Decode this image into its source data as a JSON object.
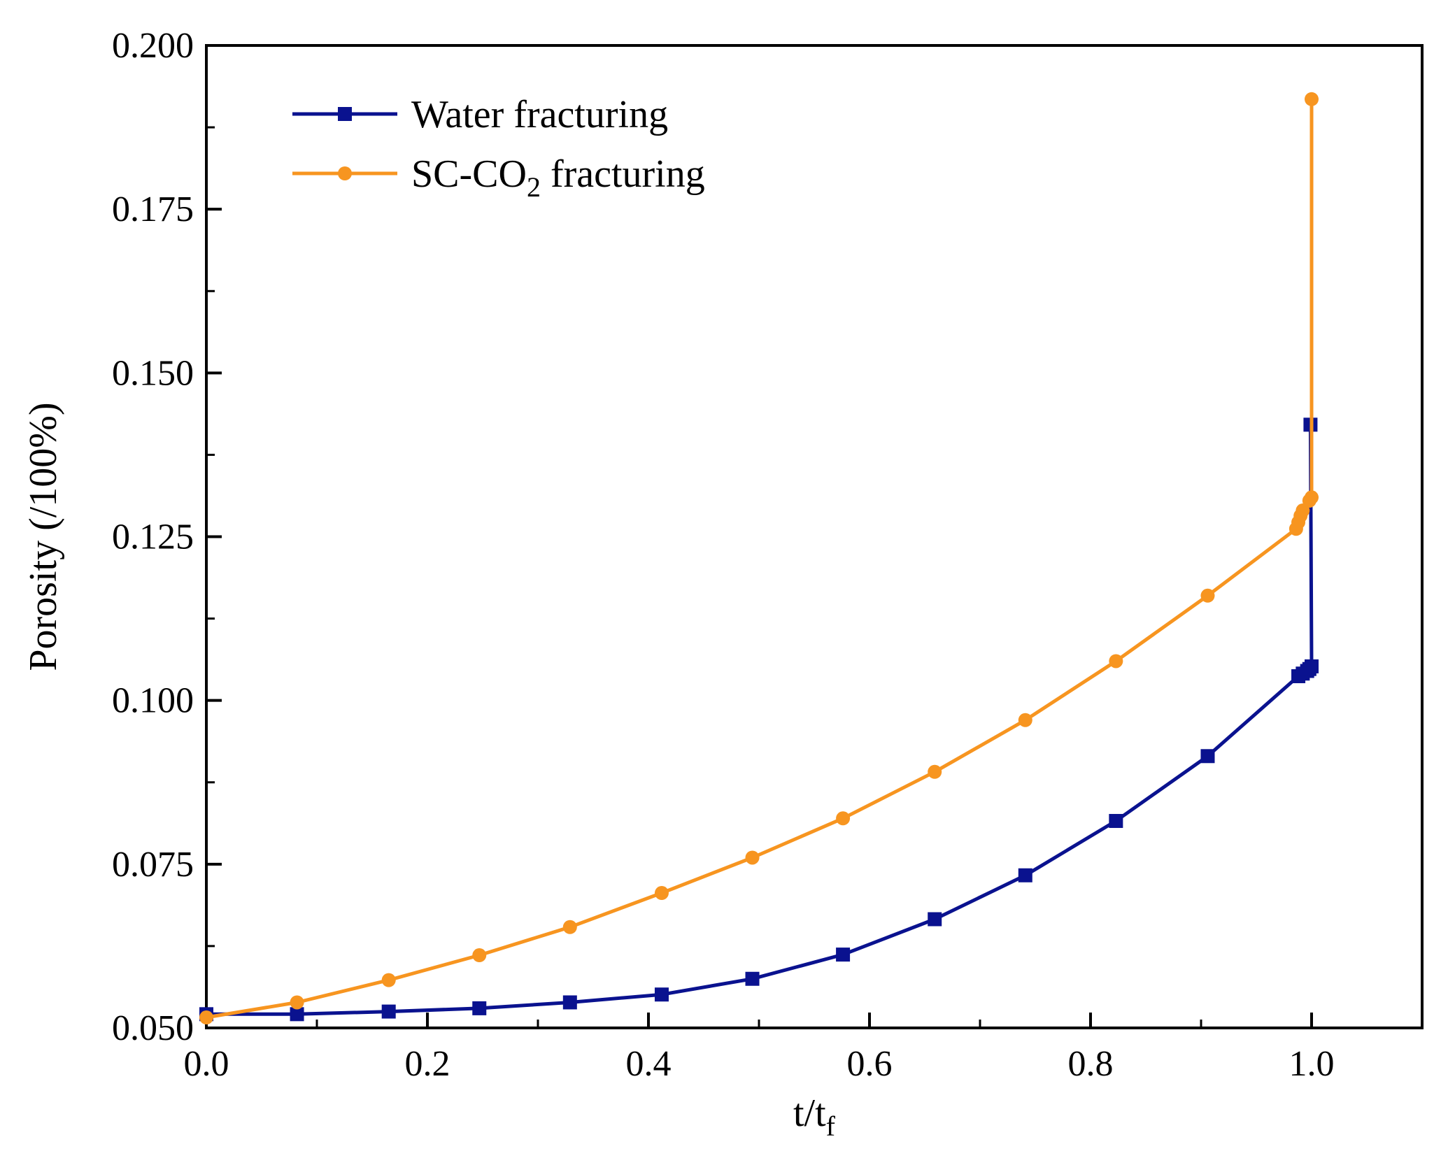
{
  "chart_data": {
    "type": "line",
    "title": "",
    "xlabel": "t/t",
    "xlabel_sub": "f",
    "ylabel": "Porosity (/100%)",
    "xlim": [
      0.0,
      1.1
    ],
    "ylim": [
      0.05,
      0.2
    ],
    "x_ticks": [
      0.0,
      0.2,
      0.4,
      0.6,
      0.8,
      1.0
    ],
    "x_tick_labels": [
      "0.0",
      "0.2",
      "0.4",
      "0.6",
      "0.8",
      "1.0"
    ],
    "y_ticks": [
      0.05,
      0.075,
      0.1,
      0.125,
      0.15,
      0.175,
      0.2
    ],
    "y_tick_labels": [
      "0.050",
      "0.075",
      "0.100",
      "0.125",
      "0.150",
      "0.175",
      "0.200"
    ],
    "grid": false,
    "legend_position": "top-left",
    "series": [
      {
        "name": "Water fracturing",
        "legend_label": "Water fracturing",
        "color": "#0a128f",
        "marker": "square",
        "x": [
          0.0,
          0.082,
          0.165,
          0.247,
          0.329,
          0.412,
          0.494,
          0.576,
          0.659,
          0.741,
          0.823,
          0.906,
          0.988,
          0.992,
          0.996,
          0.998,
          1.0,
          0.999
        ],
        "y": [
          0.0521,
          0.0521,
          0.0525,
          0.053,
          0.0539,
          0.0551,
          0.0575,
          0.0612,
          0.0666,
          0.0733,
          0.0816,
          0.0915,
          0.1037,
          0.1041,
          0.1045,
          0.1048,
          0.1052,
          0.1421
        ]
      },
      {
        "name": "SC-CO2 fracturing",
        "legend_label": "SC-CO",
        "legend_sub": "2",
        "legend_suffix": " fracturing",
        "color": "#f79520",
        "marker": "circle",
        "x": [
          0.0,
          0.082,
          0.165,
          0.247,
          0.329,
          0.412,
          0.494,
          0.576,
          0.659,
          0.741,
          0.823,
          0.906,
          0.986,
          0.988,
          0.99,
          0.992,
          0.998,
          1.0,
          1.0
        ],
        "y": [
          0.0516,
          0.0539,
          0.0573,
          0.0611,
          0.0654,
          0.0706,
          0.076,
          0.082,
          0.0891,
          0.097,
          0.106,
          0.116,
          0.1262,
          0.1272,
          0.1282,
          0.129,
          0.1305,
          0.131,
          0.1918
        ]
      }
    ]
  }
}
